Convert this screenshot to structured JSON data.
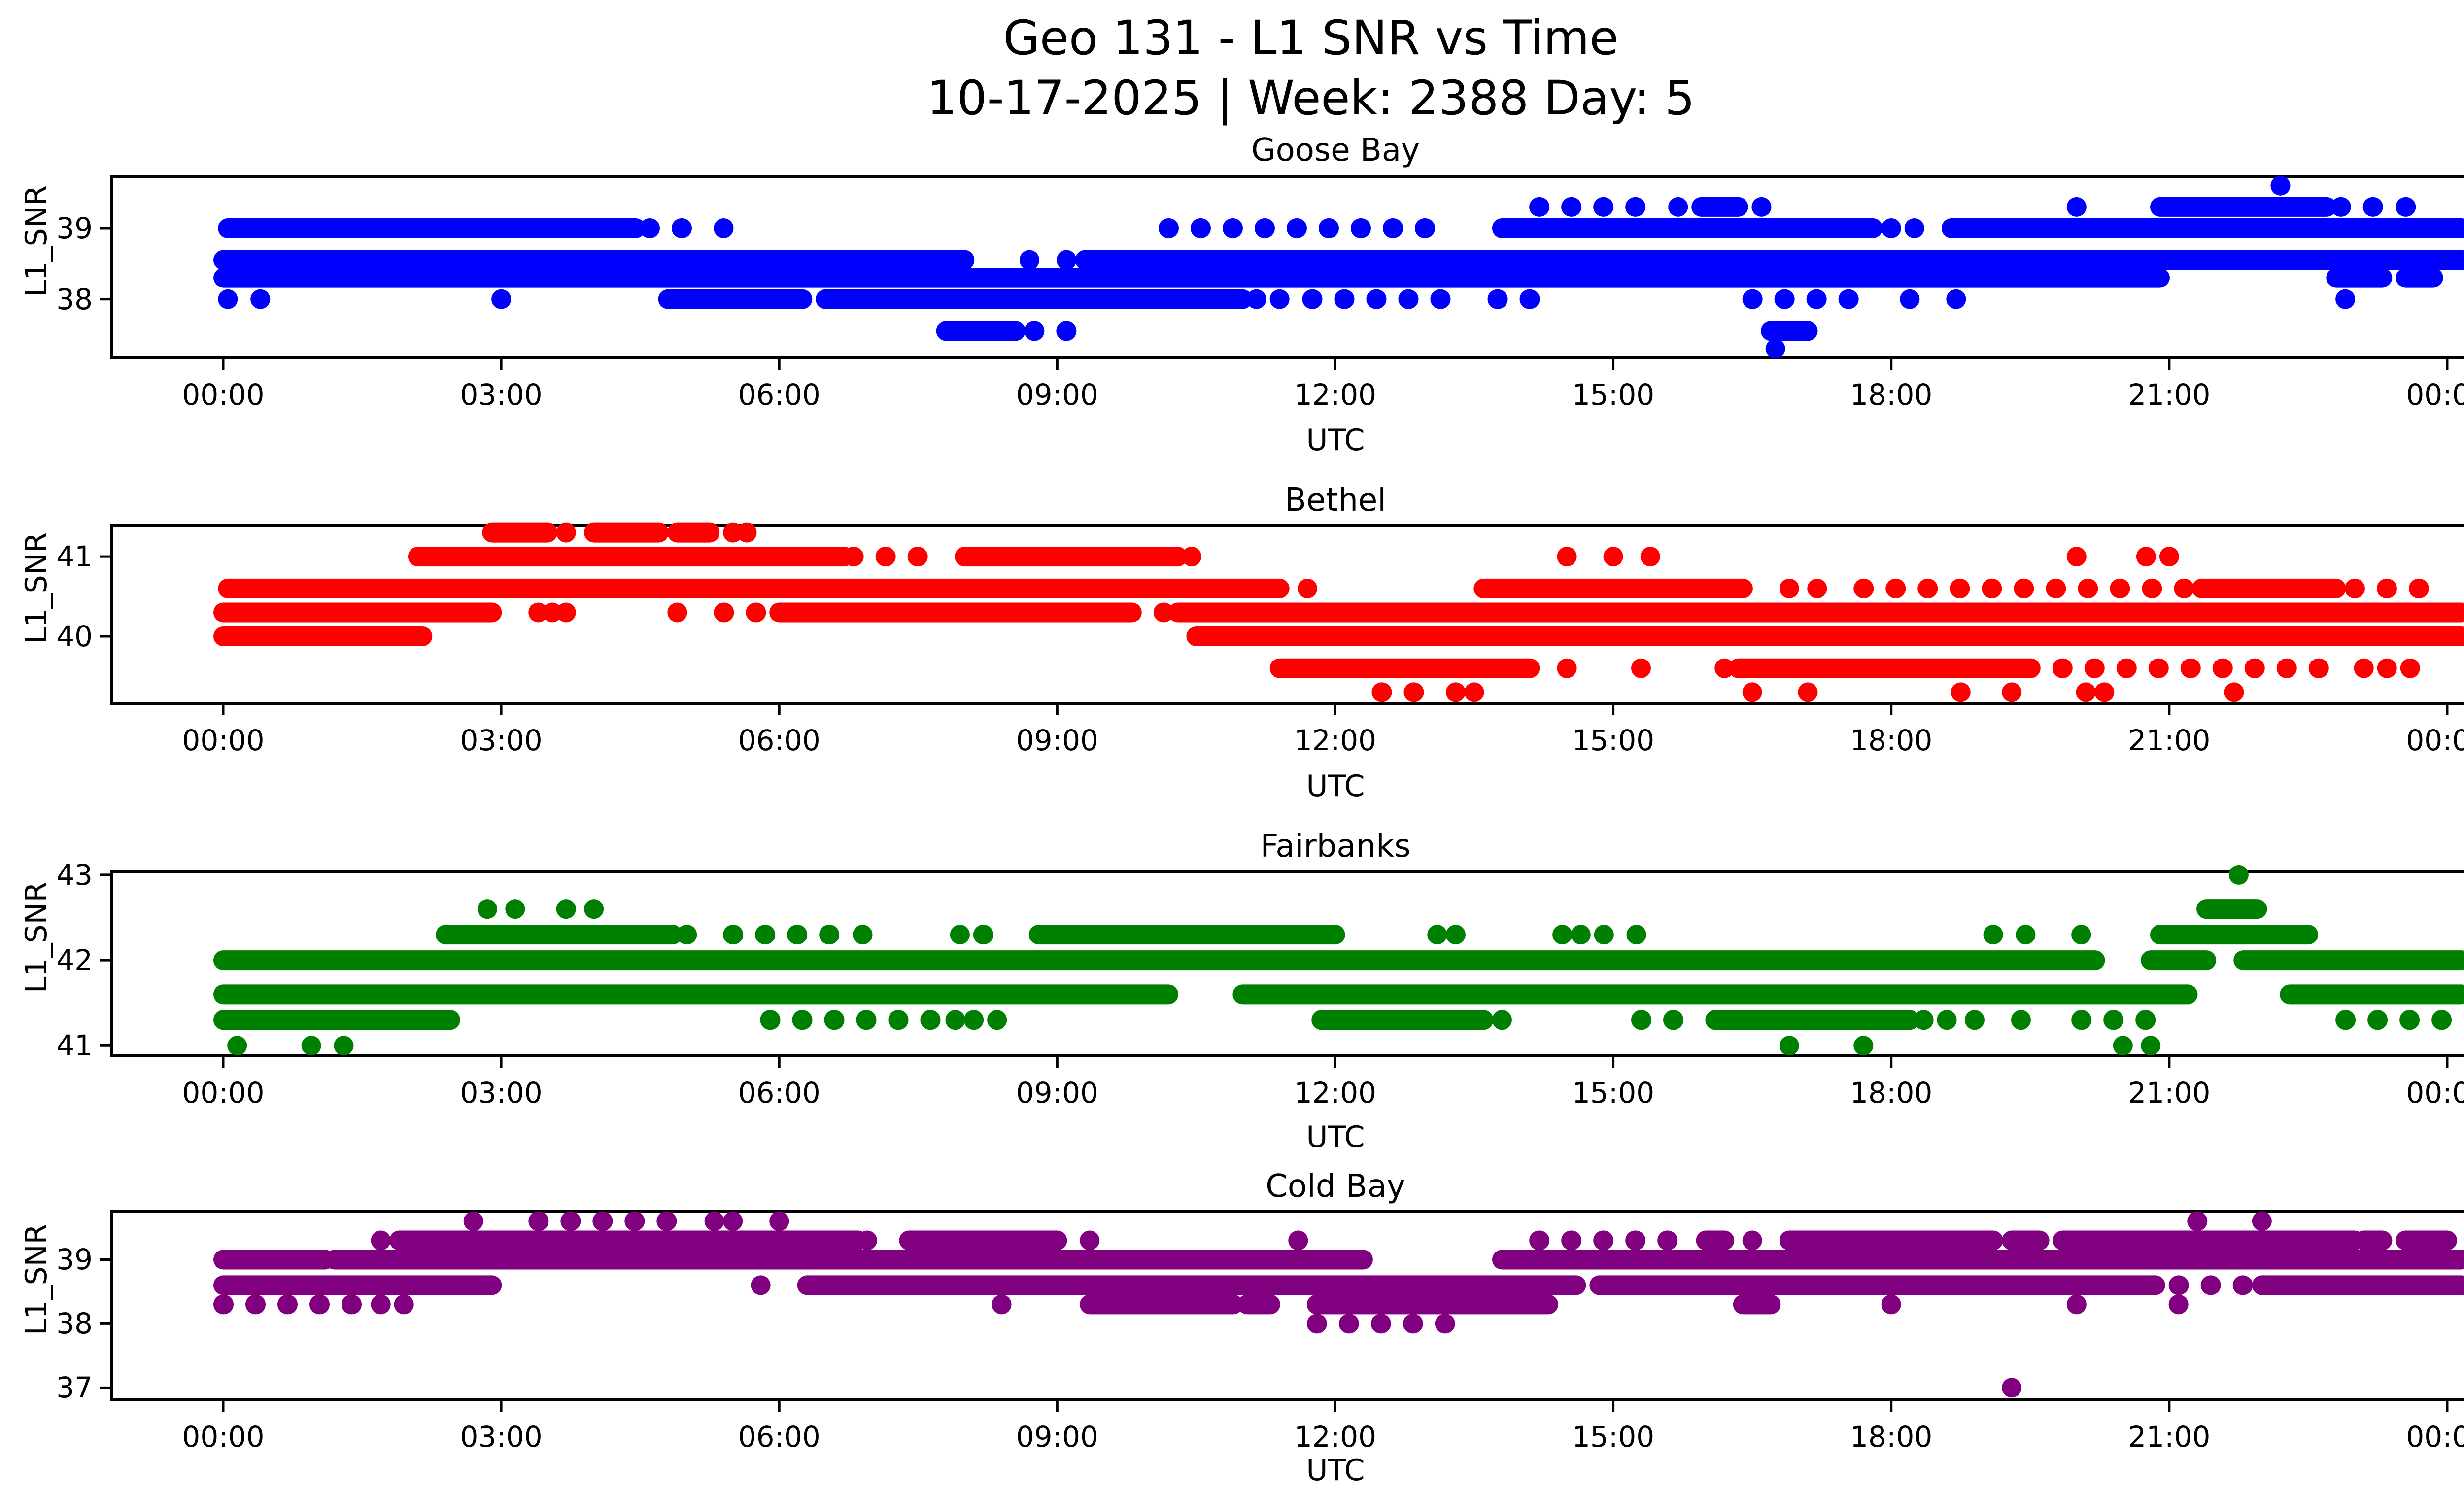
{
  "title": {
    "line1": "Geo 131 - L1 SNR vs Time",
    "line2": "10-17-2025 | Week: 2388 Day: 5"
  },
  "x_axis": {
    "label": "UTC",
    "tick_hours": [
      0,
      3,
      6,
      9,
      12,
      15,
      18,
      21,
      24
    ],
    "tick_labels": [
      "00:00",
      "03:00",
      "06:00",
      "09:00",
      "12:00",
      "15:00",
      "18:00",
      "21:00",
      "00:00"
    ]
  },
  "chart_data": [
    {
      "type": "scatter",
      "title": "Goose Bay",
      "color": "#0000ff",
      "ylabel": "L1_SNR",
      "xlabel": "UTC",
      "xlim": [
        -1.2,
        25.2
      ],
      "ylim": [
        37.17,
        39.73
      ],
      "yticks": [
        39,
        38
      ],
      "bands": [
        {
          "snr": 39.6,
          "segments": [],
          "dots": [
            22.2
          ]
        },
        {
          "snr": 39.3,
          "segments": [
            [
              14.2,
              15.5,
              "sparse"
            ],
            [
              15.95,
              16.35,
              "solid"
            ],
            [
              20.9,
              22.7,
              "solid"
            ],
            [
              22.85,
              23.3,
              "sparse"
            ],
            [
              23.55,
              23.8,
              "sparse"
            ]
          ],
          "dots": [
            15.7,
            16.6,
            20.0
          ]
        },
        {
          "snr": 39.0,
          "segments": [
            [
              0.05,
              4.45,
              "solid"
            ],
            [
              4.6,
              5.1,
              "sparse"
            ],
            [
              10.2,
              13.1,
              "sparse"
            ],
            [
              13.8,
              17.8,
              "solid"
            ],
            [
              18.65,
              24.15,
              "solid"
            ]
          ],
          "dots": [
            5.4,
            18.0,
            18.25
          ]
        },
        {
          "snr": 38.55,
          "segments": [
            [
              0.0,
              8.0,
              "solid"
            ],
            [
              9.3,
              24.15,
              "solid"
            ]
          ],
          "dots": [
            8.7,
            9.1
          ]
        },
        {
          "snr": 38.3,
          "segments": [
            [
              0.0,
              20.9,
              "solid"
            ],
            [
              22.8,
              23.3,
              "solid"
            ],
            [
              23.55,
              23.85,
              "solid"
            ]
          ],
          "dots": []
        },
        {
          "snr": 38.0,
          "segments": [
            [
              4.8,
              6.25,
              "solid"
            ],
            [
              6.5,
              11.0,
              "solid"
            ],
            [
              11.75,
              13.4,
              "sparse"
            ],
            [
              13.75,
              14.3,
              "sparse"
            ],
            [
              16.5,
              17.6,
              "sparse"
            ]
          ],
          "dots": [
            0.05,
            0.4,
            3.0,
            11.15,
            11.4,
            18.2,
            18.7,
            22.9
          ]
        },
        {
          "snr": 37.55,
          "segments": [
            [
              7.8,
              8.55,
              "solid"
            ],
            [
              8.75,
              9.25,
              "sparse"
            ],
            [
              16.7,
              17.1,
              "solid"
            ]
          ],
          "dots": []
        },
        {
          "snr": 37.3,
          "segments": [],
          "dots": [
            16.75
          ]
        }
      ]
    },
    {
      "type": "scatter",
      "title": "Bethel",
      "color": "#ff0000",
      "ylabel": "L1_SNR",
      "xlabel": "UTC",
      "xlim": [
        -1.2,
        25.2
      ],
      "ylim": [
        39.16,
        41.39
      ],
      "yticks": [
        41,
        40
      ],
      "bands": [
        {
          "snr": 41.3,
          "segments": [
            [
              2.9,
              3.5,
              "solid"
            ],
            [
              4.0,
              4.7,
              "solid"
            ],
            [
              4.9,
              5.25,
              "solid"
            ]
          ],
          "dots": [
            3.7,
            5.5,
            5.65
          ]
        },
        {
          "snr": 41.0,
          "segments": [
            [
              2.1,
              6.7,
              "solid"
            ],
            [
              6.8,
              7.6,
              "sparse"
            ],
            [
              8.0,
              10.3,
              "solid"
            ]
          ],
          "dots": [
            10.45,
            14.5,
            15.0,
            15.4,
            20.0,
            20.75,
            21.0
          ]
        },
        {
          "snr": 40.6,
          "segments": [
            [
              0.05,
              11.4,
              "solid"
            ],
            [
              13.6,
              16.4,
              "solid"
            ],
            [
              17.7,
              21.2,
              "sparse"
            ],
            [
              21.35,
              22.8,
              "solid"
            ],
            [
              23.0,
              23.9,
              "sparse"
            ]
          ],
          "dots": [
            11.7,
            16.9,
            17.2
          ]
        },
        {
          "snr": 40.3,
          "segments": [
            [
              0.0,
              2.9,
              "solid"
            ],
            [
              5.4,
              5.8,
              "sparse"
            ],
            [
              6.0,
              9.8,
              "solid"
            ],
            [
              9.8,
              10.25,
              "sparse"
            ],
            [
              10.3,
              24.15,
              "solid"
            ]
          ],
          "dots": [
            3.4,
            3.55,
            3.7,
            4.9
          ]
        },
        {
          "snr": 40.0,
          "segments": [
            [
              0.0,
              2.15,
              "solid"
            ],
            [
              10.5,
              24.15,
              "solid"
            ]
          ],
          "dots": []
        },
        {
          "snr": 39.6,
          "segments": [
            [
              11.4,
              14.1,
              "solid"
            ],
            [
              16.35,
              19.5,
              "solid"
            ],
            [
              19.5,
              22.9,
              "sparse"
            ]
          ],
          "dots": [
            14.5,
            15.3,
            16.2,
            23.1,
            23.35,
            23.6
          ]
        },
        {
          "snr": 39.3,
          "segments": [
            [
              12.5,
              13.1,
              "sparse"
            ]
          ],
          "dots": [
            13.3,
            13.5,
            16.5,
            17.1,
            18.75,
            19.3,
            20.1,
            20.3,
            21.7
          ]
        }
      ]
    },
    {
      "type": "scatter",
      "title": "Fairbanks",
      "color": "#008000",
      "ylabel": "L1_SNR",
      "xlabel": "UTC",
      "xlim": [
        -1.2,
        25.2
      ],
      "ylim": [
        40.88,
        43.04
      ],
      "yticks": [
        43,
        42,
        41
      ],
      "bands": [
        {
          "snr": 43.0,
          "segments": [],
          "dots": [
            21.75
          ]
        },
        {
          "snr": 42.6,
          "segments": [
            [
              21.4,
              21.95,
              "solid"
            ]
          ],
          "dots": [
            2.85,
            3.15,
            3.7,
            4.0
          ]
        },
        {
          "snr": 42.3,
          "segments": [
            [
              2.4,
              4.85,
              "solid"
            ],
            [
              5.0,
              5.2,
              "sparse"
            ],
            [
              5.5,
              6.75,
              "sparse"
            ],
            [
              8.2,
              8.5,
              "sparse"
            ],
            [
              8.8,
              12.0,
              "solid"
            ],
            [
              20.9,
              22.5,
              "solid"
            ]
          ],
          "dots": [
            6.9,
            7.95,
            13.1,
            13.3,
            14.45,
            14.65,
            14.9,
            15.25,
            19.1,
            19.45,
            20.05
          ]
        },
        {
          "snr": 42.0,
          "segments": [
            [
              0.0,
              20.2,
              "solid"
            ],
            [
              20.8,
              21.4,
              "solid"
            ],
            [
              21.8,
              24.15,
              "solid"
            ]
          ],
          "dots": []
        },
        {
          "snr": 41.6,
          "segments": [
            [
              0.0,
              10.2,
              "solid"
            ],
            [
              11.0,
              21.2,
              "solid"
            ],
            [
              22.3,
              24.15,
              "solid"
            ]
          ],
          "dots": []
        },
        {
          "snr": 41.3,
          "segments": [
            [
              0.0,
              2.45,
              "solid"
            ],
            [
              5.9,
              7.7,
              "sparse"
            ],
            [
              11.85,
              13.6,
              "solid"
            ],
            [
              15.3,
              15.85,
              "sparse"
            ],
            [
              16.1,
              18.2,
              "solid"
            ],
            [
              20.05,
              21.05,
              "sparse"
            ],
            [
              22.9,
              24.1,
              "sparse"
            ]
          ],
          "dots": [
            7.9,
            8.1,
            8.35,
            13.8,
            18.35,
            18.6,
            18.9,
            19.4
          ]
        },
        {
          "snr": 41.0,
          "segments": [],
          "dots": [
            0.15,
            0.95,
            1.3,
            16.9,
            17.7,
            20.5,
            20.8
          ]
        }
      ]
    },
    {
      "type": "scatter",
      "title": "Cold Bay",
      "color": "#800080",
      "ylabel": "L1_SNR",
      "xlabel": "UTC",
      "xlim": [
        -1.2,
        25.2
      ],
      "ylim": [
        36.81,
        39.75
      ],
      "yticks": [
        39,
        38,
        37
      ],
      "bands": [
        {
          "snr": 39.6,
          "segments": [
            [
              3.4,
              5.0,
              "sparse"
            ],
            [
              21.3,
              21.6,
              "sparse"
            ]
          ],
          "dots": [
            2.7,
            5.3,
            5.5,
            6.0,
            22.0
          ]
        },
        {
          "snr": 39.3,
          "segments": [
            [
              1.9,
              6.85,
              "solid"
            ],
            [
              7.4,
              9.0,
              "solid"
            ],
            [
              14.2,
              15.85,
              "sparse"
            ],
            [
              16.0,
              16.2,
              "solid"
            ],
            [
              16.9,
              19.1,
              "solid"
            ],
            [
              19.3,
              19.6,
              "solid"
            ],
            [
              19.85,
              23.0,
              "solid"
            ],
            [
              23.1,
              23.3,
              "solid"
            ],
            [
              23.55,
              24.0,
              "solid"
            ]
          ],
          "dots": [
            1.7,
            6.95,
            9.35,
            11.6,
            16.5
          ]
        },
        {
          "snr": 39.0,
          "segments": [
            [
              0.0,
              1.1,
              "solid"
            ],
            [
              1.2,
              12.3,
              "solid"
            ],
            [
              13.8,
              24.15,
              "solid"
            ]
          ],
          "dots": []
        },
        {
          "snr": 38.6,
          "segments": [
            [
              0.0,
              2.9,
              "solid"
            ],
            [
              6.3,
              14.6,
              "solid"
            ],
            [
              14.85,
              20.85,
              "solid"
            ],
            [
              21.1,
              21.8,
              "sparse"
            ],
            [
              22.0,
              24.15,
              "solid"
            ]
          ],
          "dots": [
            5.8
          ]
        },
        {
          "snr": 38.3,
          "segments": [
            [
              0.0,
              1.5,
              "sparse"
            ],
            [
              9.35,
              10.9,
              "solid"
            ],
            [
              11.05,
              11.3,
              "solid"
            ],
            [
              11.8,
              14.3,
              "solid"
            ],
            [
              16.4,
              16.7,
              "solid"
            ]
          ],
          "dots": [
            1.7,
            1.95,
            8.4,
            18.0,
            20.0,
            21.1
          ]
        },
        {
          "snr": 38.0,
          "segments": [
            [
              11.8,
              13.4,
              "sparse"
            ]
          ],
          "dots": []
        },
        {
          "snr": 37.0,
          "segments": [],
          "dots": [
            19.3
          ]
        }
      ]
    }
  ]
}
